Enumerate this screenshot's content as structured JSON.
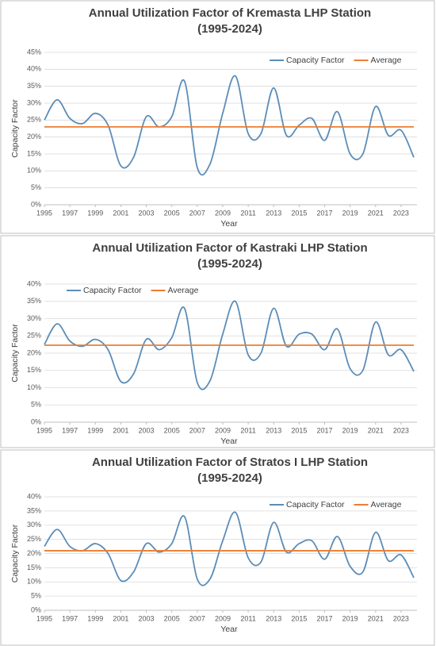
{
  "chart_data": [
    {
      "type": "line",
      "title": "Annual Utilization Factor of Kremasta LHP Station",
      "subtitle": "(1995-2024)",
      "x_label": "Year",
      "y_label": "Capacity Factor",
      "legend_position": "top-right",
      "grid": true,
      "x": [
        1995,
        1996,
        1997,
        1998,
        1999,
        2000,
        2001,
        2002,
        2003,
        2004,
        2005,
        2006,
        2007,
        2008,
        2009,
        2010,
        2011,
        2012,
        2013,
        2014,
        2015,
        2016,
        2017,
        2018,
        2019,
        2020,
        2021,
        2022,
        2023,
        2024
      ],
      "xlim": [
        1995,
        2024
      ],
      "xticks": [
        1995,
        1997,
        1999,
        2001,
        2003,
        2005,
        2007,
        2009,
        2011,
        2013,
        2015,
        2017,
        2019,
        2021,
        2023
      ],
      "ylim": [
        0,
        45
      ],
      "yticks": [
        {
          "value": 0,
          "label": "0%"
        },
        {
          "value": 5,
          "label": "5%"
        },
        {
          "value": 10,
          "label": "10%"
        },
        {
          "value": 15,
          "label": "15%"
        },
        {
          "value": 20,
          "label": "20%"
        },
        {
          "value": 25,
          "label": "25%"
        },
        {
          "value": 30,
          "label": "30%"
        },
        {
          "value": 35,
          "label": "35%"
        },
        {
          "value": 40,
          "label": "40%"
        },
        {
          "value": 45,
          "label": "45%"
        }
      ],
      "series": [
        {
          "name": "Capacity Factor",
          "color": "#5b8db8",
          "values": [
            25,
            31,
            25.5,
            24,
            27,
            23.5,
            11.5,
            14,
            26,
            23,
            26,
            36.5,
            11,
            12,
            27,
            38,
            21,
            21,
            34.5,
            20.5,
            23.5,
            25.5,
            19,
            27.5,
            15,
            15,
            29,
            20.5,
            22,
            14
          ]
        },
        {
          "name": "Average",
          "color": "#ed7d31",
          "values": [
            23,
            23,
            23,
            23,
            23,
            23,
            23,
            23,
            23,
            23,
            23,
            23,
            23,
            23,
            23,
            23,
            23,
            23,
            23,
            23,
            23,
            23,
            23,
            23,
            23,
            23,
            23,
            23,
            23,
            23
          ]
        }
      ]
    },
    {
      "type": "line",
      "title": "Annual Utilization Factor of Kastraki LHP Station",
      "subtitle": "(1995-2024)",
      "x_label": "Year",
      "y_label": "Capacity Factor",
      "legend_position": "top-left",
      "grid": true,
      "x": [
        1995,
        1996,
        1997,
        1998,
        1999,
        2000,
        2001,
        2002,
        2003,
        2004,
        2005,
        2006,
        2007,
        2008,
        2009,
        2010,
        2011,
        2012,
        2013,
        2014,
        2015,
        2016,
        2017,
        2018,
        2019,
        2020,
        2021,
        2022,
        2023,
        2024
      ],
      "xlim": [
        1995,
        2024
      ],
      "xticks": [
        1995,
        1997,
        1999,
        2001,
        2003,
        2005,
        2007,
        2009,
        2011,
        2013,
        2015,
        2017,
        2019,
        2021,
        2023
      ],
      "ylim": [
        0,
        40
      ],
      "yticks": [
        {
          "value": 0,
          "label": "0%"
        },
        {
          "value": 5,
          "label": "5%"
        },
        {
          "value": 10,
          "label": "10%"
        },
        {
          "value": 15,
          "label": "15%"
        },
        {
          "value": 20,
          "label": "20%"
        },
        {
          "value": 25,
          "label": "25%"
        },
        {
          "value": 30,
          "label": "30%"
        },
        {
          "value": 35,
          "label": "35%"
        },
        {
          "value": 40,
          "label": "40%"
        }
      ],
      "series": [
        {
          "name": "Capacity Factor",
          "color": "#5b8db8",
          "values": [
            22.5,
            28.5,
            23.5,
            22,
            24,
            21,
            11.8,
            14,
            24,
            21,
            24.5,
            33,
            11.5,
            12,
            25.5,
            35,
            19.5,
            20,
            33,
            22,
            25.5,
            25.5,
            21,
            27,
            15.5,
            15,
            29,
            19.5,
            21,
            14.7
          ]
        },
        {
          "name": "Average",
          "color": "#ed7d31",
          "values": [
            22.3,
            22.3,
            22.3,
            22.3,
            22.3,
            22.3,
            22.3,
            22.3,
            22.3,
            22.3,
            22.3,
            22.3,
            22.3,
            22.3,
            22.3,
            22.3,
            22.3,
            22.3,
            22.3,
            22.3,
            22.3,
            22.3,
            22.3,
            22.3,
            22.3,
            22.3,
            22.3,
            22.3,
            22.3,
            22.3
          ]
        }
      ]
    },
    {
      "type": "line",
      "title": "Annual Utilization Factor of Stratos I LHP Station",
      "subtitle": "(1995-2024)",
      "x_label": "Year",
      "y_label": "Capacity Factor",
      "legend_position": "top-right",
      "grid": true,
      "x": [
        1995,
        1996,
        1997,
        1998,
        1999,
        2000,
        2001,
        2002,
        2003,
        2004,
        2005,
        2006,
        2007,
        2008,
        2009,
        2010,
        2011,
        2012,
        2013,
        2014,
        2015,
        2016,
        2017,
        2018,
        2019,
        2020,
        2021,
        2022,
        2023,
        2024
      ],
      "xlim": [
        1995,
        2024
      ],
      "xticks": [
        1995,
        1997,
        1999,
        2001,
        2003,
        2005,
        2007,
        2009,
        2011,
        2013,
        2015,
        2017,
        2019,
        2021,
        2023
      ],
      "ylim": [
        0,
        40
      ],
      "yticks": [
        {
          "value": 0,
          "label": "0%"
        },
        {
          "value": 5,
          "label": "5%"
        },
        {
          "value": 10,
          "label": "10%"
        },
        {
          "value": 15,
          "label": "15%"
        },
        {
          "value": 20,
          "label": "20%"
        },
        {
          "value": 25,
          "label": "25%"
        },
        {
          "value": 30,
          "label": "30%"
        },
        {
          "value": 35,
          "label": "35%"
        },
        {
          "value": 40,
          "label": "40%"
        }
      ],
      "series": [
        {
          "name": "Capacity Factor",
          "color": "#5b8db8",
          "values": [
            22.5,
            28.5,
            22.5,
            21,
            23.5,
            20,
            10.5,
            13.5,
            23.5,
            20.5,
            23.5,
            33,
            11,
            11,
            24.5,
            34.5,
            18.5,
            17,
            31,
            20.5,
            23.5,
            24.5,
            18,
            26,
            15.5,
            13.5,
            27.5,
            17.5,
            19.5,
            11.5
          ]
        },
        {
          "name": "Average",
          "color": "#ed7d31",
          "values": [
            21,
            21,
            21,
            21,
            21,
            21,
            21,
            21,
            21,
            21,
            21,
            21,
            21,
            21,
            21,
            21,
            21,
            21,
            21,
            21,
            21,
            21,
            21,
            21,
            21,
            21,
            21,
            21,
            21,
            21
          ]
        }
      ]
    }
  ]
}
